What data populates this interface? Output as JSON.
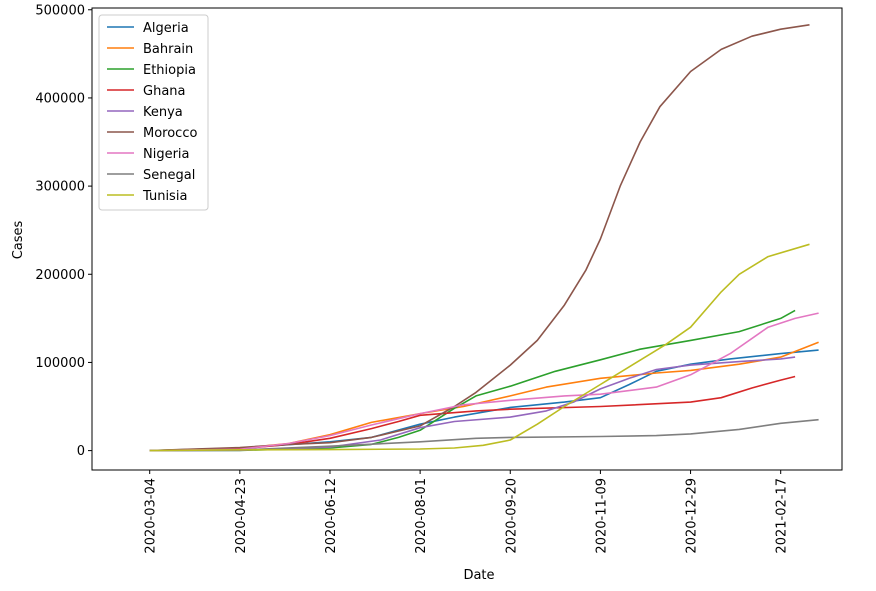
{
  "chart_data": {
    "type": "line",
    "xlabel": "Date",
    "ylabel": "Cases",
    "xlim": [
      "2020-02-01",
      "2021-03-23"
    ],
    "ylim": [
      -22000,
      502000
    ],
    "x_ticks": [
      "2020-03-04",
      "2020-04-23",
      "2020-06-12",
      "2020-08-01",
      "2020-09-20",
      "2020-11-09",
      "2020-12-29",
      "2021-02-17"
    ],
    "y_ticks": [
      0,
      100000,
      200000,
      300000,
      400000,
      500000
    ],
    "y_tick_labels": [
      "0",
      "100000",
      "200000",
      "300000",
      "400000",
      "500000"
    ],
    "legend_position": "top-left",
    "series": [
      {
        "name": "Algeria",
        "color": "#1f77b4",
        "points": [
          [
            "2020-03-04",
            0
          ],
          [
            "2020-04-23",
            3000
          ],
          [
            "2020-06-12",
            10000
          ],
          [
            "2020-07-05",
            15000
          ],
          [
            "2020-08-01",
            30000
          ],
          [
            "2020-08-20",
            38000
          ],
          [
            "2020-09-20",
            49000
          ],
          [
            "2020-10-20",
            55000
          ],
          [
            "2020-11-09",
            60000
          ],
          [
            "2020-11-25",
            75000
          ],
          [
            "2020-12-10",
            90000
          ],
          [
            "2020-12-29",
            98000
          ],
          [
            "2021-01-20",
            104000
          ],
          [
            "2021-02-17",
            110000
          ],
          [
            "2021-03-10",
            114000
          ]
        ]
      },
      {
        "name": "Bahrain",
        "color": "#ff7f0e",
        "points": [
          [
            "2020-03-04",
            0
          ],
          [
            "2020-04-23",
            2500
          ],
          [
            "2020-05-20",
            8000
          ],
          [
            "2020-06-12",
            18000
          ],
          [
            "2020-07-05",
            32000
          ],
          [
            "2020-08-01",
            42000
          ],
          [
            "2020-08-25",
            50000
          ],
          [
            "2020-09-20",
            62000
          ],
          [
            "2020-10-10",
            72000
          ],
          [
            "2020-11-09",
            82000
          ],
          [
            "2020-12-10",
            88000
          ],
          [
            "2020-12-29",
            91000
          ],
          [
            "2021-01-25",
            98000
          ],
          [
            "2021-02-17",
            106000
          ],
          [
            "2021-03-10",
            123000
          ]
        ]
      },
      {
        "name": "Ethiopia",
        "color": "#2ca02c",
        "points": [
          [
            "2020-03-04",
            0
          ],
          [
            "2020-04-23",
            200
          ],
          [
            "2020-06-12",
            3000
          ],
          [
            "2020-07-05",
            7000
          ],
          [
            "2020-07-20",
            15000
          ],
          [
            "2020-08-01",
            23000
          ],
          [
            "2020-08-20",
            48000
          ],
          [
            "2020-09-01",
            62000
          ],
          [
            "2020-09-20",
            73000
          ],
          [
            "2020-10-15",
            90000
          ],
          [
            "2020-11-09",
            103000
          ],
          [
            "2020-12-01",
            115000
          ],
          [
            "2020-12-29",
            125000
          ],
          [
            "2021-01-25",
            135000
          ],
          [
            "2021-02-17",
            150000
          ],
          [
            "2021-02-25",
            159000
          ]
        ]
      },
      {
        "name": "Ghana",
        "color": "#d62728",
        "points": [
          [
            "2020-03-04",
            0
          ],
          [
            "2020-04-23",
            2000
          ],
          [
            "2020-05-20",
            7000
          ],
          [
            "2020-06-12",
            14000
          ],
          [
            "2020-07-05",
            25000
          ],
          [
            "2020-07-20",
            33000
          ],
          [
            "2020-08-01",
            40000
          ],
          [
            "2020-09-01",
            45000
          ],
          [
            "2020-09-20",
            47000
          ],
          [
            "2020-11-09",
            50000
          ],
          [
            "2020-12-29",
            55000
          ],
          [
            "2021-01-15",
            60000
          ],
          [
            "2021-02-01",
            71000
          ],
          [
            "2021-02-17",
            80000
          ],
          [
            "2021-02-25",
            84000
          ]
        ]
      },
      {
        "name": "Kenya",
        "color": "#9467bd",
        "points": [
          [
            "2020-03-04",
            0
          ],
          [
            "2020-04-23",
            300
          ],
          [
            "2020-06-12",
            4000
          ],
          [
            "2020-07-10",
            12000
          ],
          [
            "2020-08-01",
            26000
          ],
          [
            "2020-08-20",
            33000
          ],
          [
            "2020-09-20",
            38000
          ],
          [
            "2020-10-10",
            45000
          ],
          [
            "2020-10-25",
            55000
          ],
          [
            "2020-11-09",
            70000
          ],
          [
            "2020-11-25",
            82000
          ],
          [
            "2020-12-10",
            92000
          ],
          [
            "2020-12-29",
            97000
          ],
          [
            "2021-01-25",
            101000
          ],
          [
            "2021-02-17",
            104000
          ],
          [
            "2021-02-25",
            106000
          ]
        ]
      },
      {
        "name": "Morocco",
        "color": "#8c564b",
        "points": [
          [
            "2020-03-04",
            0
          ],
          [
            "2020-04-23",
            3500
          ],
          [
            "2020-05-20",
            7000
          ],
          [
            "2020-06-12",
            9000
          ],
          [
            "2020-07-05",
            15000
          ],
          [
            "2020-08-01",
            28000
          ],
          [
            "2020-08-20",
            50000
          ],
          [
            "2020-09-01",
            66000
          ],
          [
            "2020-09-20",
            97000
          ],
          [
            "2020-10-05",
            125000
          ],
          [
            "2020-10-20",
            165000
          ],
          [
            "2020-11-01",
            205000
          ],
          [
            "2020-11-09",
            240000
          ],
          [
            "2020-11-20",
            300000
          ],
          [
            "2020-12-01",
            350000
          ],
          [
            "2020-12-12",
            390000
          ],
          [
            "2020-12-29",
            430000
          ],
          [
            "2021-01-15",
            455000
          ],
          [
            "2021-02-01",
            470000
          ],
          [
            "2021-02-17",
            478000
          ],
          [
            "2021-03-05",
            483000
          ]
        ]
      },
      {
        "name": "Nigeria",
        "color": "#e377c2",
        "points": [
          [
            "2020-03-04",
            0
          ],
          [
            "2020-04-23",
            1500
          ],
          [
            "2020-05-20",
            8000
          ],
          [
            "2020-06-12",
            17000
          ],
          [
            "2020-07-05",
            29000
          ],
          [
            "2020-08-01",
            42000
          ],
          [
            "2020-08-25",
            52000
          ],
          [
            "2020-09-20",
            57000
          ],
          [
            "2020-10-20",
            62000
          ],
          [
            "2020-11-09",
            64000
          ],
          [
            "2020-12-10",
            72000
          ],
          [
            "2020-12-29",
            86000
          ],
          [
            "2021-01-20",
            110000
          ],
          [
            "2021-02-10",
            140000
          ],
          [
            "2021-02-25",
            150000
          ],
          [
            "2021-03-10",
            156000
          ]
        ]
      },
      {
        "name": "Senegal",
        "color": "#7f7f7f",
        "points": [
          [
            "2020-03-04",
            0
          ],
          [
            "2020-04-23",
            700
          ],
          [
            "2020-06-12",
            5000
          ],
          [
            "2020-08-01",
            10000
          ],
          [
            "2020-09-01",
            14000
          ],
          [
            "2020-09-20",
            15000
          ],
          [
            "2020-11-09",
            16000
          ],
          [
            "2020-12-10",
            17000
          ],
          [
            "2020-12-29",
            19000
          ],
          [
            "2021-01-25",
            24000
          ],
          [
            "2021-02-17",
            31000
          ],
          [
            "2021-03-10",
            35000
          ]
        ]
      },
      {
        "name": "Tunisia",
        "color": "#bcbd22",
        "points": [
          [
            "2020-03-04",
            0
          ],
          [
            "2020-04-23",
            900
          ],
          [
            "2020-06-12",
            1100
          ],
          [
            "2020-08-01",
            1800
          ],
          [
            "2020-08-20",
            3000
          ],
          [
            "2020-09-05",
            6000
          ],
          [
            "2020-09-20",
            12000
          ],
          [
            "2020-10-05",
            30000
          ],
          [
            "2020-10-20",
            50000
          ],
          [
            "2020-11-09",
            75000
          ],
          [
            "2020-11-25",
            95000
          ],
          [
            "2020-12-15",
            120000
          ],
          [
            "2020-12-29",
            140000
          ],
          [
            "2021-01-15",
            180000
          ],
          [
            "2021-01-25",
            200000
          ],
          [
            "2021-02-10",
            220000
          ],
          [
            "2021-03-05",
            234000
          ]
        ]
      }
    ]
  }
}
